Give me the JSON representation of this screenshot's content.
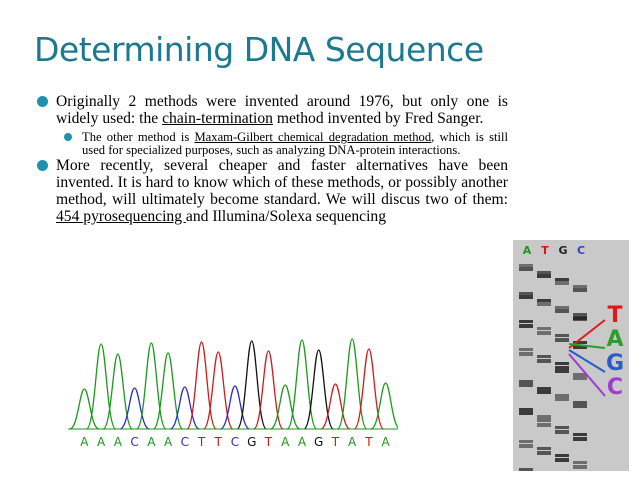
{
  "title": "Determining DNA Sequence",
  "bullets": [
    {
      "parts": [
        {
          "text": "Originally 2 methods were invented around 1976, but only one is widely used: the ",
          "underline": false
        },
        {
          "text": "chain-termination",
          "underline": true
        },
        {
          "text": " method invented by Fred Sanger.",
          "underline": false
        }
      ],
      "sub": [
        {
          "parts": [
            {
              "text": "The other method is ",
              "underline": false
            },
            {
              "text": "Maxam-Gilbert chemical degradation method",
              "underline": true
            },
            {
              "text": ", which is still used for specialized purposes, such as analyzing DNA-protein interactions.",
              "underline": false
            }
          ]
        }
      ]
    },
    {
      "parts": [
        {
          "text": "More recently, several cheaper and faster alternatives have been invented.  It is hard to know which of these methods, or possibly another method, will ultimately become standard.    We will discus two of them: ",
          "underline": false
        },
        {
          "text": "454 pyrosequencing ",
          "underline": true
        },
        {
          "text": "and Illumina/Solexa sequencing",
          "underline": false
        }
      ],
      "sub": []
    }
  ],
  "chromatogram": {
    "bases": [
      {
        "letter": "A",
        "color": "#1a9a1a"
      },
      {
        "letter": "A",
        "color": "#1a9a1a"
      },
      {
        "letter": "A",
        "color": "#1a9a1a"
      },
      {
        "letter": "C",
        "color": "#2a2ad0"
      },
      {
        "letter": "A",
        "color": "#1a9a1a"
      },
      {
        "letter": "A",
        "color": "#1a9a1a"
      },
      {
        "letter": "C",
        "color": "#2a2ad0"
      },
      {
        "letter": "T",
        "color": "#d01a1a"
      },
      {
        "letter": "T",
        "color": "#d01a1a"
      },
      {
        "letter": "C",
        "color": "#2a2ad0"
      },
      {
        "letter": "G",
        "color": "#111111"
      },
      {
        "letter": "T",
        "color": "#d01a1a"
      },
      {
        "letter": "A",
        "color": "#1a9a1a"
      },
      {
        "letter": "A",
        "color": "#1a9a1a"
      },
      {
        "letter": "G",
        "color": "#111111"
      },
      {
        "letter": "T",
        "color": "#d01a1a"
      },
      {
        "letter": "A",
        "color": "#1a9a1a"
      },
      {
        "letter": "T",
        "color": "#d01a1a"
      },
      {
        "letter": "A",
        "color": "#1a9a1a"
      }
    ]
  },
  "gel": {
    "lanes": [
      {
        "label": "A",
        "color": "#1a9a1a"
      },
      {
        "label": "T",
        "color": "#d01a1a"
      },
      {
        "label": "G",
        "color": "#222222"
      },
      {
        "label": "C",
        "color": "#3a3ad0"
      }
    ],
    "bases": [
      {
        "label": "T",
        "color": "#e01a1a"
      },
      {
        "label": "A",
        "color": "#2aa02a"
      },
      {
        "label": "G",
        "color": "#2a5ad0"
      },
      {
        "label": "C",
        "color": "#a03ad0"
      }
    ]
  }
}
